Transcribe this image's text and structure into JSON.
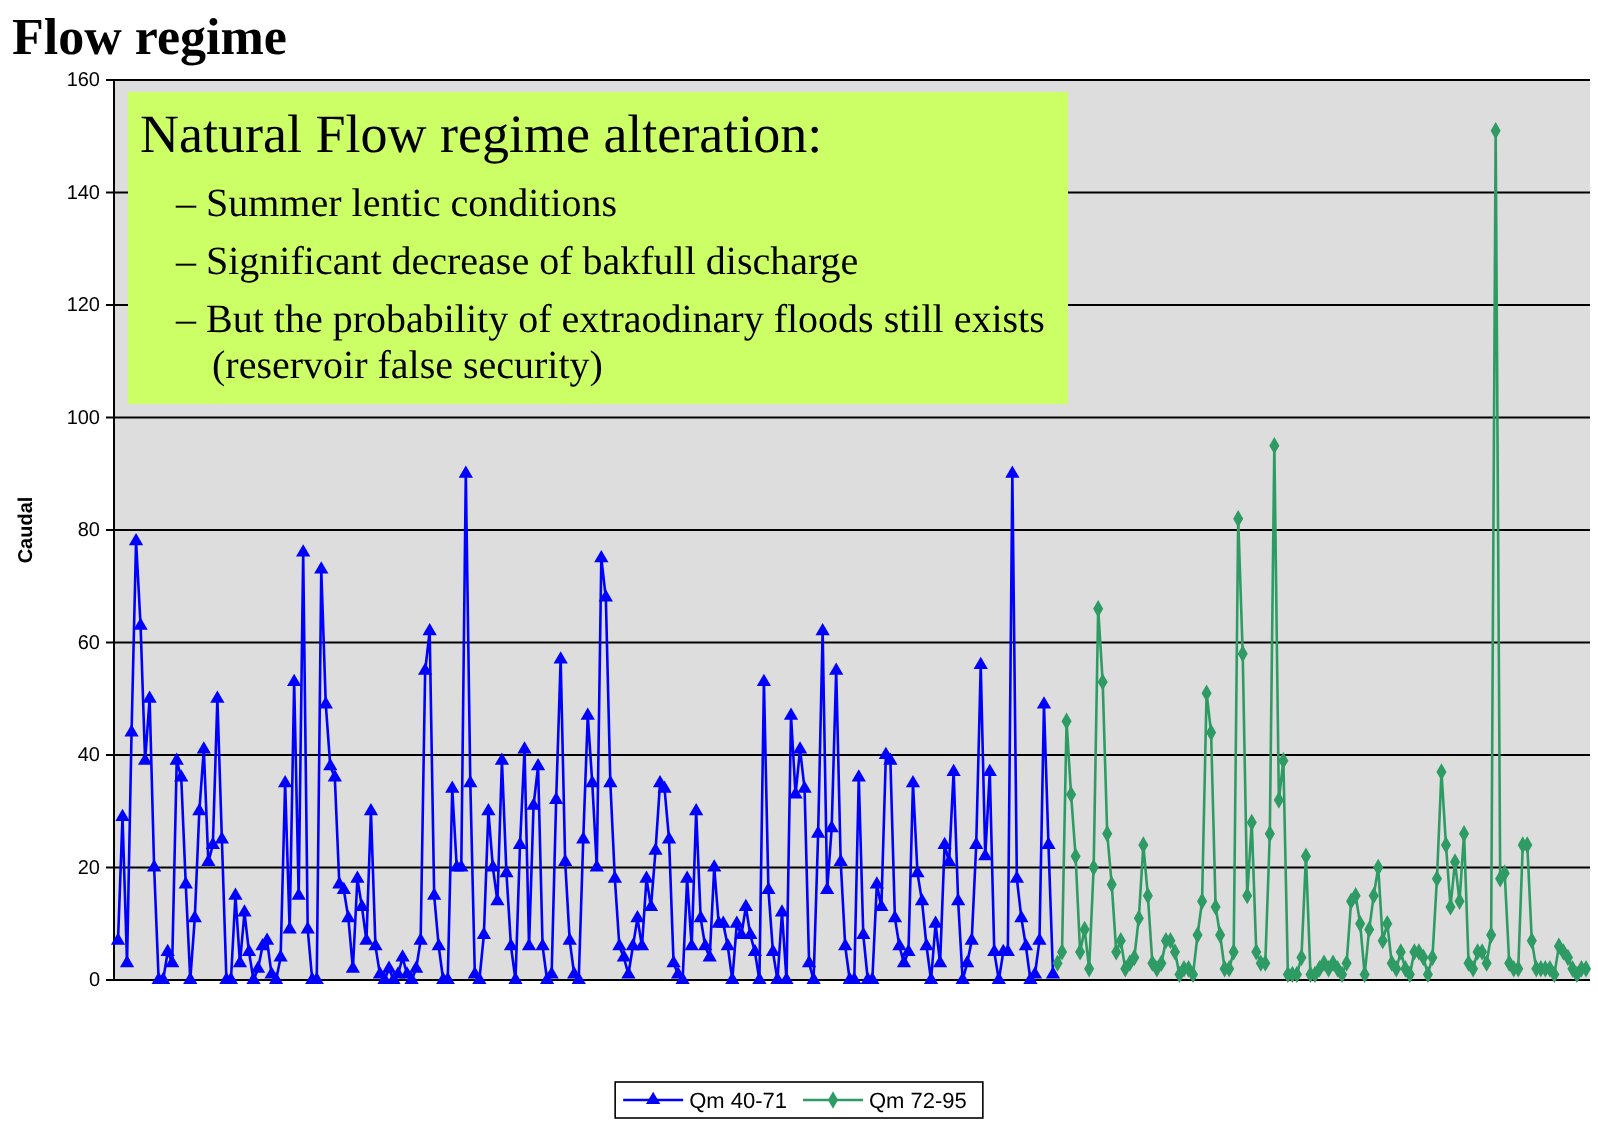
{
  "chart_data": {
    "type": "line",
    "title": "Flow regime",
    "ylabel": "Caudal",
    "annotations": [
      "Natural Flow regime alteration:",
      "– Summer lentic conditions",
      "– Significant decrease of bakfull discharge",
      "– But the probability of extraodinary floods still exists (reservoir false security)"
    ],
    "categories": [
      null,
      null,
      null,
      null,
      null,
      null,
      null,
      null,
      null,
      null,
      null,
      null,
      null,
      null,
      null,
      null,
      null,
      null,
      null,
      null,
      null,
      null,
      null,
      null,
      null,
      null,
      null,
      null,
      null,
      null,
      null,
      null,
      null,
      null,
      null,
      null,
      null,
      null,
      null,
      null,
      null,
      null,
      null,
      null,
      null,
      null,
      null,
      null,
      null,
      null,
      null,
      null,
      null,
      null,
      null,
      null,
      null,
      null,
      null,
      null,
      null,
      null,
      null,
      null,
      null,
      null,
      null,
      null,
      null,
      null,
      null,
      null,
      null,
      null,
      null,
      null,
      null,
      null,
      null,
      null,
      null,
      null,
      null,
      null,
      null,
      null,
      null,
      null,
      null,
      null,
      null,
      null,
      null,
      null,
      null,
      null,
      null,
      null,
      null,
      null,
      null,
      null,
      null,
      null,
      null,
      null,
      null,
      null,
      null,
      null,
      null,
      null,
      null,
      null,
      null,
      null,
      null,
      null,
      null,
      null,
      null,
      null,
      null,
      null,
      null,
      null,
      null,
      null,
      null,
      null,
      null,
      null,
      null,
      null,
      null,
      null,
      null,
      null,
      null,
      null,
      null,
      null,
      null,
      null,
      null,
      null,
      null,
      null,
      null,
      null,
      null,
      null,
      null,
      null,
      null,
      null,
      null,
      null,
      null,
      null,
      null,
      null,
      null,
      null,
      null,
      null,
      null,
      null,
      null,
      null,
      null,
      null,
      null,
      null,
      null,
      null,
      null,
      null,
      null,
      null,
      null,
      null,
      null,
      null,
      null,
      null,
      null,
      null,
      null,
      null,
      null,
      null,
      null,
      null,
      null,
      null,
      null,
      null,
      null,
      null,
      null,
      null,
      null,
      null,
      null,
      null,
      null,
      null,
      null,
      null,
      null,
      null,
      null,
      null,
      null,
      null,
      null,
      null,
      null,
      null,
      null,
      null,
      null,
      null,
      null,
      null,
      null,
      null,
      null,
      null,
      null,
      null,
      null,
      null,
      null,
      null,
      null,
      null,
      null,
      null,
      null,
      null,
      null,
      null,
      null,
      null,
      null,
      null,
      null,
      null,
      null,
      null,
      null,
      null,
      null,
      null,
      null,
      null,
      null,
      null,
      null,
      null,
      null,
      null,
      null,
      null,
      null,
      null,
      null,
      null,
      null,
      null,
      null,
      null,
      null,
      null,
      null,
      null,
      null,
      null,
      null,
      null,
      null,
      null,
      null,
      null,
      null,
      null,
      null,
      null,
      null,
      null,
      null,
      null,
      null,
      null,
      null,
      null,
      null,
      null,
      null,
      null,
      null,
      null,
      null,
      null,
      null,
      null,
      null,
      null,
      null,
      null,
      null,
      null,
      null,
      null,
      null,
      null,
      null,
      null,
      null,
      null,
      null,
      null,
      null,
      null
    ],
    "ylim": [
      0,
      160
    ],
    "yticks": [
      0,
      20,
      40,
      60,
      80,
      100,
      120,
      140,
      160
    ],
    "tick_labels": "y",
    "grid": "y",
    "legend": "bottom",
    "series": [
      {
        "name": "Qm 40-71",
        "color": "#0000ff",
        "marker": "triangle",
        "values": [
          7,
          29,
          3,
          44,
          78,
          63,
          39,
          50,
          20,
          0,
          0,
          5,
          3,
          39,
          36,
          17,
          0,
          11,
          30,
          41,
          21,
          24,
          50,
          25,
          0,
          0,
          15,
          3,
          12,
          5,
          0,
          2,
          6,
          7,
          1,
          0,
          4,
          35,
          9,
          53,
          15,
          76,
          9,
          0,
          0,
          73,
          49,
          38,
          36,
          17,
          16,
          11,
          2,
          18,
          13,
          7,
          30,
          6,
          1,
          0,
          2,
          0,
          1,
          4,
          1,
          0,
          2,
          7,
          55,
          62,
          15,
          6,
          0,
          0,
          34,
          20,
          20,
          90,
          35,
          1,
          0,
          8,
          30,
          20,
          14,
          39,
          19,
          6,
          0,
          24,
          41,
          6,
          31,
          38,
          6,
          0,
          1,
          32,
          57,
          21,
          7,
          1,
          0,
          25,
          47,
          35,
          20,
          75,
          68,
          35,
          18,
          6,
          4,
          1,
          6,
          11,
          6,
          18,
          13,
          23,
          35,
          34,
          25,
          3,
          1,
          0,
          18,
          6,
          30,
          11,
          6,
          4,
          20,
          10,
          10,
          6,
          0,
          10,
          8,
          13,
          8,
          5,
          0,
          53,
          16,
          5,
          0,
          12,
          0,
          47,
          33,
          41,
          34,
          3,
          0,
          26,
          62,
          16,
          27,
          55,
          21,
          6,
          0,
          0,
          36,
          8,
          0,
          0,
          17,
          13,
          40,
          39,
          11,
          6,
          3,
          5,
          35,
          19,
          14,
          6,
          0,
          10,
          3,
          24,
          21,
          37,
          14,
          0,
          3,
          7,
          24,
          56,
          22,
          37,
          5,
          0,
          5,
          5,
          90,
          18,
          11,
          6,
          0,
          1,
          7,
          49,
          24,
          1,
          null,
          null,
          null,
          null,
          null,
          null,
          null,
          null,
          null,
          null,
          null,
          null,
          null,
          null,
          null,
          null,
          null,
          null,
          null,
          null,
          null,
          null,
          null,
          null,
          null,
          null,
          null,
          null,
          null,
          null,
          null,
          null,
          null,
          null,
          null,
          null,
          null,
          null,
          null,
          null,
          null,
          null,
          null,
          null,
          null,
          null,
          null,
          null,
          null,
          null,
          null,
          null,
          null,
          null,
          null,
          null,
          null,
          null,
          null,
          null,
          null,
          null,
          null,
          null,
          null,
          null,
          null,
          null,
          null,
          null,
          null,
          null,
          null,
          null,
          null,
          null,
          null,
          null,
          null,
          null,
          null,
          null,
          null,
          null,
          null,
          null,
          null,
          null,
          null,
          null,
          null,
          null,
          null,
          null,
          null,
          null,
          null,
          null,
          null,
          null,
          null,
          null,
          null,
          null,
          null,
          null,
          null,
          null,
          null,
          null,
          null,
          null,
          null,
          null,
          null,
          null,
          null,
          null
        ]
      },
      {
        "name": "Qm 72-95",
        "color": "#2e9b64",
        "marker": "diamond",
        "values": [
          null,
          null,
          null,
          null,
          null,
          null,
          null,
          null,
          null,
          null,
          null,
          null,
          null,
          null,
          null,
          null,
          null,
          null,
          null,
          null,
          null,
          null,
          null,
          null,
          null,
          null,
          null,
          null,
          null,
          null,
          null,
          null,
          null,
          null,
          null,
          null,
          null,
          null,
          null,
          null,
          null,
          null,
          null,
          null,
          null,
          null,
          null,
          null,
          null,
          null,
          null,
          null,
          null,
          null,
          null,
          null,
          null,
          null,
          null,
          null,
          null,
          null,
          null,
          null,
          null,
          null,
          null,
          null,
          null,
          null,
          null,
          null,
          null,
          null,
          null,
          null,
          null,
          null,
          null,
          null,
          null,
          null,
          null,
          null,
          null,
          null,
          null,
          null,
          null,
          null,
          null,
          null,
          null,
          null,
          null,
          null,
          null,
          null,
          null,
          null,
          null,
          null,
          null,
          null,
          null,
          null,
          null,
          null,
          null,
          null,
          null,
          null,
          null,
          null,
          null,
          null,
          null,
          null,
          null,
          null,
          null,
          null,
          null,
          null,
          null,
          null,
          null,
          null,
          null,
          null,
          null,
          null,
          null,
          null,
          null,
          null,
          null,
          null,
          null,
          null,
          null,
          null,
          null,
          null,
          null,
          null,
          null,
          null,
          null,
          null,
          null,
          null,
          null,
          null,
          null,
          null,
          null,
          null,
          null,
          null,
          null,
          null,
          null,
          null,
          null,
          null,
          null,
          null,
          null,
          null,
          null,
          null,
          null,
          null,
          null,
          null,
          null,
          null,
          null,
          null,
          null,
          null,
          null,
          null,
          null,
          null,
          null,
          null,
          null,
          null,
          null,
          null,
          null,
          null,
          null,
          null,
          null,
          null,
          null,
          null,
          null,
          null,
          null,
          null,
          null,
          null,
          null,
          null,
          3,
          5,
          46,
          33,
          22,
          5,
          9,
          2,
          20,
          66,
          53,
          26,
          17,
          5,
          7,
          2,
          3,
          4,
          11,
          24,
          15,
          3,
          2,
          3,
          7,
          7,
          5,
          1,
          2,
          2,
          1,
          8,
          14,
          51,
          44,
          13,
          8,
          2,
          2,
          5,
          82,
          58,
          15,
          28,
          5,
          3,
          3,
          26,
          95,
          32,
          39,
          1,
          1,
          1,
          4,
          22,
          1,
          1,
          2,
          3,
          2,
          3,
          2,
          1,
          3,
          14,
          15,
          10,
          1,
          9,
          15,
          20,
          7,
          10,
          3,
          2,
          5,
          2,
          1,
          5,
          5,
          4,
          1,
          4,
          18,
          37,
          24,
          13,
          21,
          14,
          26,
          3,
          2,
          5,
          5,
          3,
          8,
          151,
          18,
          19,
          3,
          2,
          2,
          24,
          24,
          7,
          2,
          2,
          2,
          2,
          1,
          6,
          5,
          4,
          2,
          1,
          2,
          2
        ]
      }
    ]
  }
}
